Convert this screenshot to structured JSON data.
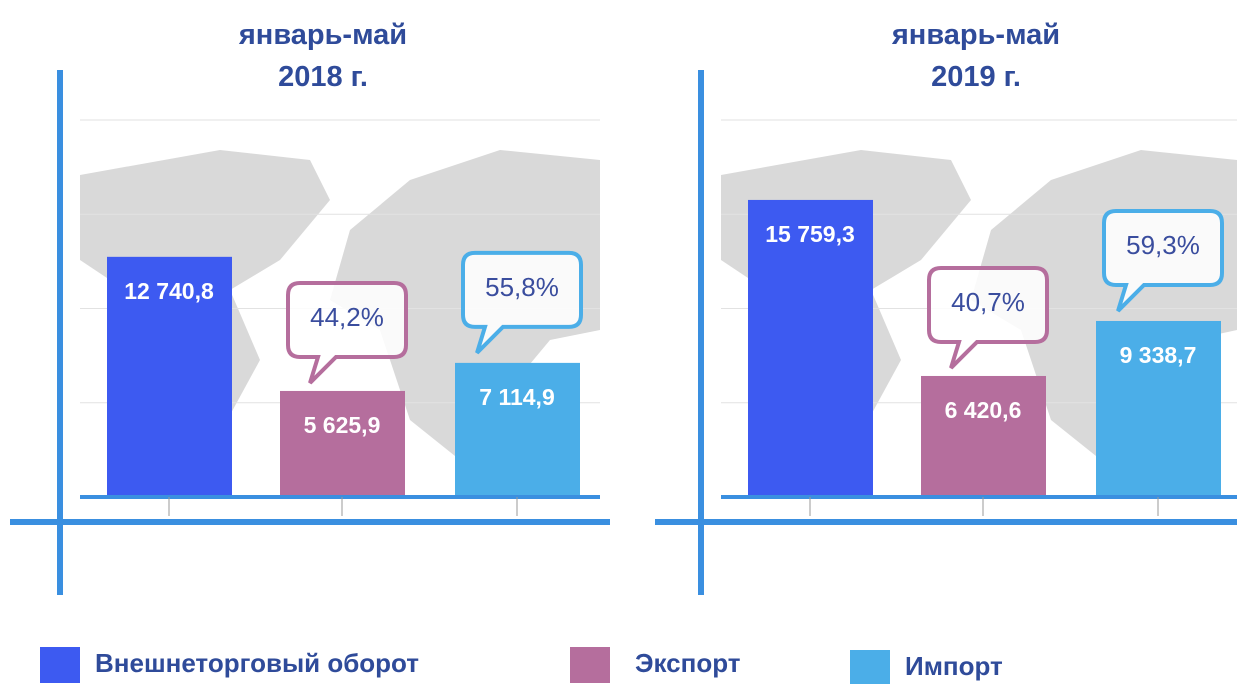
{
  "chart_data": [
    {
      "type": "bar",
      "title": "январь-май 2018 г.",
      "values": [
        12740.8,
        5625.9,
        7114.9
      ],
      "value_labels": [
        "12 740,8",
        "5 625,9",
        "7 114,9"
      ],
      "annotations": [
        {
          "text": "44,2%",
          "value": 44.2
        },
        {
          "text": "55,8%",
          "value": 55.8
        }
      ],
      "ylim": [
        0,
        20000
      ],
      "yticks": [
        0,
        5000,
        10000,
        15000,
        20000
      ],
      "grid": true
    },
    {
      "type": "bar",
      "title": "январь-май 2019 г.",
      "values": [
        15759.3,
        6420.6,
        9338.7
      ],
      "value_labels": [
        "15 759,3",
        "6 420,6",
        "9 338,7"
      ],
      "annotations": [
        {
          "text": "40,7%",
          "value": 40.7
        },
        {
          "text": "59,3%",
          "value": 59.3
        }
      ],
      "ylim": [
        0,
        20000
      ],
      "yticks": [
        0,
        5000,
        10000,
        15000,
        20000
      ],
      "grid": true
    }
  ],
  "legend": [
    {
      "name": "Внешнеторговый оборот",
      "color": "#3d5af1"
    },
    {
      "name": "Экспорт",
      "color": "#b56e9d"
    },
    {
      "name": "Импорт",
      "color": "#4baee8"
    }
  ]
}
